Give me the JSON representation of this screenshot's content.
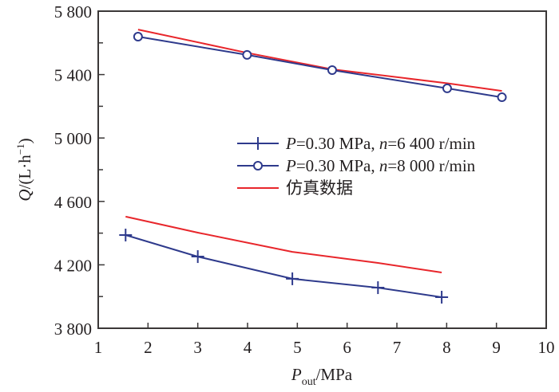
{
  "chart_data": {
    "type": "line",
    "title": "",
    "xlabel": "P_out/MPa",
    "xlabel_main": "P",
    "xlabel_sub": "out",
    "xlabel_unit": "/MPa",
    "ylabel": "Q/(L·h⁻¹)",
    "ylabel_main": "Q",
    "ylabel_unit": "/(L·h",
    "ylabel_sup": "−1",
    "ylabel_close": ")",
    "xlim": [
      1,
      10
    ],
    "ylim": [
      3800,
      5800
    ],
    "xticks": [
      1,
      2,
      3,
      4,
      5,
      6,
      7,
      8,
      9,
      10
    ],
    "xtick_labels": [
      "1",
      "2",
      "3",
      "4",
      "5",
      "6",
      "7",
      "8",
      "9",
      "10"
    ],
    "yticks": [
      3800,
      4200,
      4600,
      5000,
      5400,
      5800
    ],
    "ytick_labels": [
      "3 800",
      "4 200",
      "4 600",
      "5 000",
      "5 400",
      "5 800"
    ],
    "grid": false,
    "legend_position": "center-right",
    "colors": {
      "measured": "#2e3a8c",
      "simulated": "#e8262b",
      "axis": "#3b3838"
    },
    "series": [
      {
        "name": "P=0.30 MPa, n=6 400 r/min",
        "legend_parts": [
          "P",
          "=0.30 MPa, ",
          "n",
          "=6 400 r/min"
        ],
        "marker": "plus",
        "color": "#2e3a8c",
        "x": [
          1.55,
          3.0,
          4.9,
          6.62,
          7.9
        ],
        "y": [
          4388,
          4252,
          4112,
          4056,
          3996
        ]
      },
      {
        "name": "P=0.30 MPa, n=8 000 r/min",
        "legend_parts": [
          "P",
          "=0.30 MPa, ",
          "n",
          "=8 000 r/min"
        ],
        "marker": "circle",
        "color": "#2e3a8c",
        "x": [
          1.8,
          3.99,
          5.7,
          8.01,
          9.11
        ],
        "y": [
          5639,
          5524,
          5428,
          5313,
          5257
        ]
      },
      {
        "name": "仿真数据",
        "marker": "none",
        "color": "#e8262b",
        "segments": [
          {
            "x": [
              1.8,
              3.99,
              5.7,
              8.01,
              9.11
            ],
            "y": [
              5684,
              5537,
              5433,
              5345,
              5297
            ]
          },
          {
            "x": [
              1.55,
              3.0,
              4.9,
              6.62,
              7.9
            ],
            "y": [
              4504,
              4403,
              4282,
              4212,
              4152
            ]
          }
        ]
      }
    ]
  }
}
